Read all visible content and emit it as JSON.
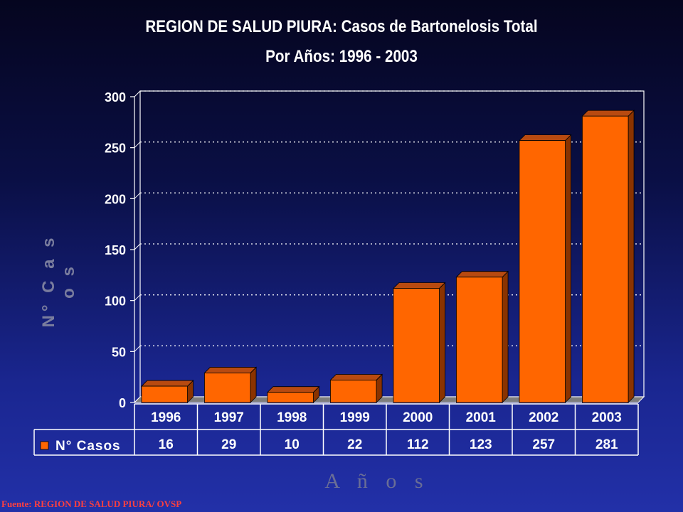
{
  "chart_data": {
    "type": "bar",
    "title": "REGION DE SALUD PIURA: Casos de Bartonelosis Total",
    "subtitle": "Por Años: 1996 - 2003",
    "xlabel": "A ñ o s",
    "ylabel": "N° C a s o s",
    "categories": [
      "1996",
      "1997",
      "1998",
      "1999",
      "2000",
      "2001",
      "2002",
      "2003"
    ],
    "series": [
      {
        "name": "N° Casos",
        "values": [
          16,
          29,
          10,
          22,
          112,
          123,
          257,
          281
        ]
      }
    ],
    "ylim": [
      0,
      300
    ],
    "yticks": [
      "0",
      "50",
      "100",
      "150",
      "200",
      "250",
      "300"
    ],
    "grid": true,
    "data_table": true,
    "bar_color": "#ff6600",
    "bar_side_color": "#8a3300",
    "bar_top_color": "#b84a10"
  },
  "source": "Fuente: REGION DE SALUD PIURA/ OVSP"
}
